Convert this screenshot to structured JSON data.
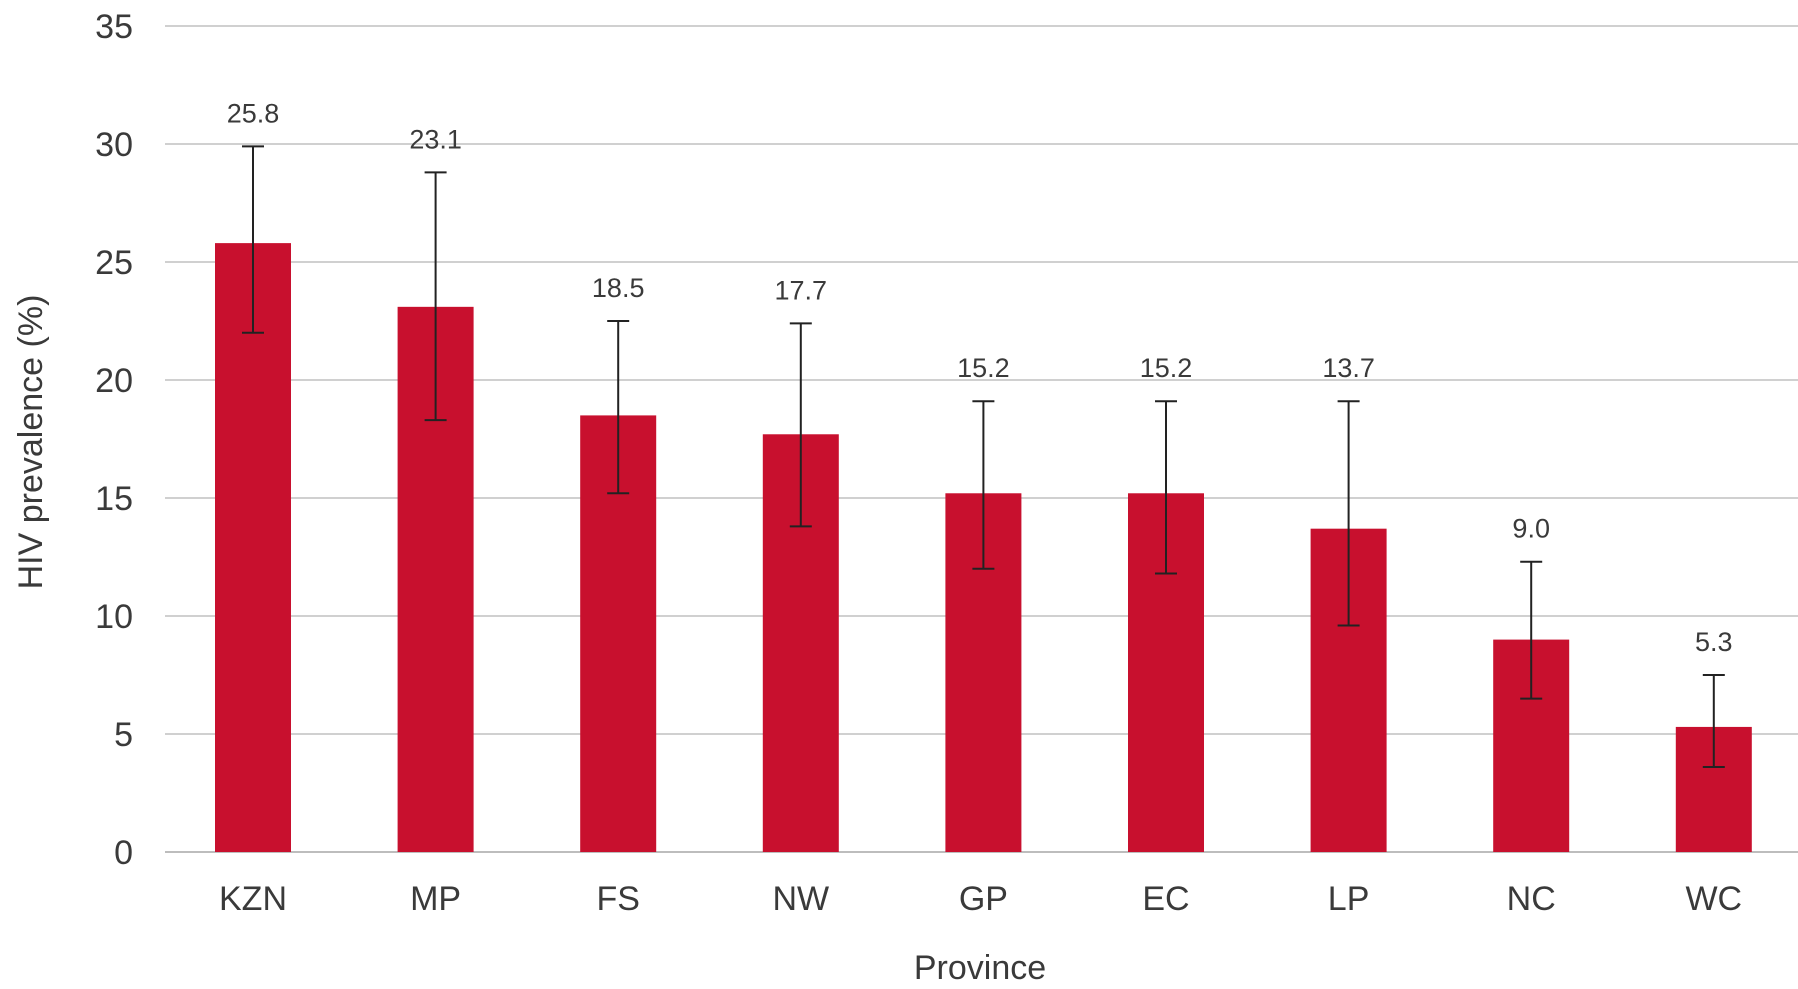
{
  "chart_data": {
    "type": "bar",
    "title": "",
    "xlabel": "Province",
    "ylabel": "HIV prevalence (%)",
    "ylim": [
      0,
      35
    ],
    "yticks": [
      0,
      5,
      10,
      15,
      20,
      25,
      30,
      35
    ],
    "grid": true,
    "legend": "none",
    "categories": [
      "KZN",
      "MP",
      "FS",
      "NW",
      "GP",
      "EC",
      "LP",
      "NC",
      "WC"
    ],
    "values": [
      25.8,
      23.1,
      18.5,
      17.7,
      15.2,
      15.2,
      13.7,
      9.0,
      5.3
    ],
    "value_labels": [
      "25.8",
      "23.1",
      "18.5",
      "17.7",
      "15.2",
      "15.2",
      "13.7",
      "9.0",
      "5.3"
    ],
    "error_low": [
      22.0,
      18.3,
      15.2,
      13.8,
      12.0,
      11.8,
      9.6,
      6.5,
      3.6
    ],
    "error_high": [
      29.9,
      28.8,
      22.5,
      22.4,
      19.1,
      19.1,
      19.1,
      12.3,
      7.5
    ],
    "bar_color": "#c8102e"
  }
}
